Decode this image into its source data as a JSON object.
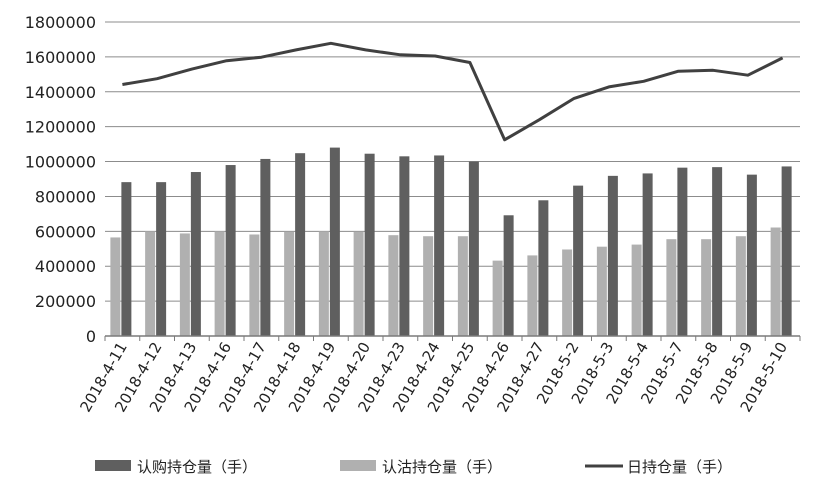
{
  "chart_data": {
    "type": "bar",
    "title": "",
    "xlabel": "",
    "ylabel": "",
    "ylim": [
      0,
      1800000
    ],
    "yticks": [
      0,
      200000,
      400000,
      600000,
      800000,
      1000000,
      1200000,
      1400000,
      1600000,
      1800000
    ],
    "grid": "horizontal",
    "legend_position": "bottom",
    "categories": [
      "2018-4-11",
      "2018-4-12",
      "2018-4-13",
      "2018-4-16",
      "2018-4-17",
      "2018-4-18",
      "2018-4-19",
      "2018-4-20",
      "2018-4-23",
      "2018-4-24",
      "2018-4-25",
      "2018-4-26",
      "2018-4-27",
      "2018-5-2",
      "2018-5-3",
      "2018-5-4",
      "2018-5-7",
      "2018-5-8",
      "2018-5-9",
      "2018-5-10"
    ],
    "series": [
      {
        "name": "认沽持仓量（手）",
        "kind": "bar",
        "color": "#b0b0b0",
        "values": [
          565000,
          600000,
          588000,
          600000,
          582000,
          598000,
          600000,
          598000,
          578000,
          572000,
          572000,
          432000,
          462000,
          496000,
          512000,
          524000,
          555000,
          555000,
          572000,
          622000
        ]
      },
      {
        "name": "认购持仓量（手）",
        "kind": "bar",
        "color": "#5f5f5f",
        "values": [
          882000,
          882000,
          940000,
          980000,
          1015000,
          1048000,
          1080000,
          1045000,
          1030000,
          1035000,
          1000000,
          692000,
          778000,
          862000,
          918000,
          932000,
          965000,
          968000,
          925000,
          972000
        ]
      },
      {
        "name": "日持仓量（手）",
        "kind": "line",
        "color": "#404040",
        "values": [
          1442000,
          1475000,
          1530000,
          1578000,
          1598000,
          1640000,
          1678000,
          1640000,
          1612000,
          1605000,
          1568000,
          1125000,
          1240000,
          1362000,
          1428000,
          1460000,
          1518000,
          1523000,
          1495000,
          1594000
        ]
      }
    ],
    "legend": [
      "认购持仓量（手）",
      "认沽持仓量（手）",
      "日持仓量（手）"
    ]
  }
}
